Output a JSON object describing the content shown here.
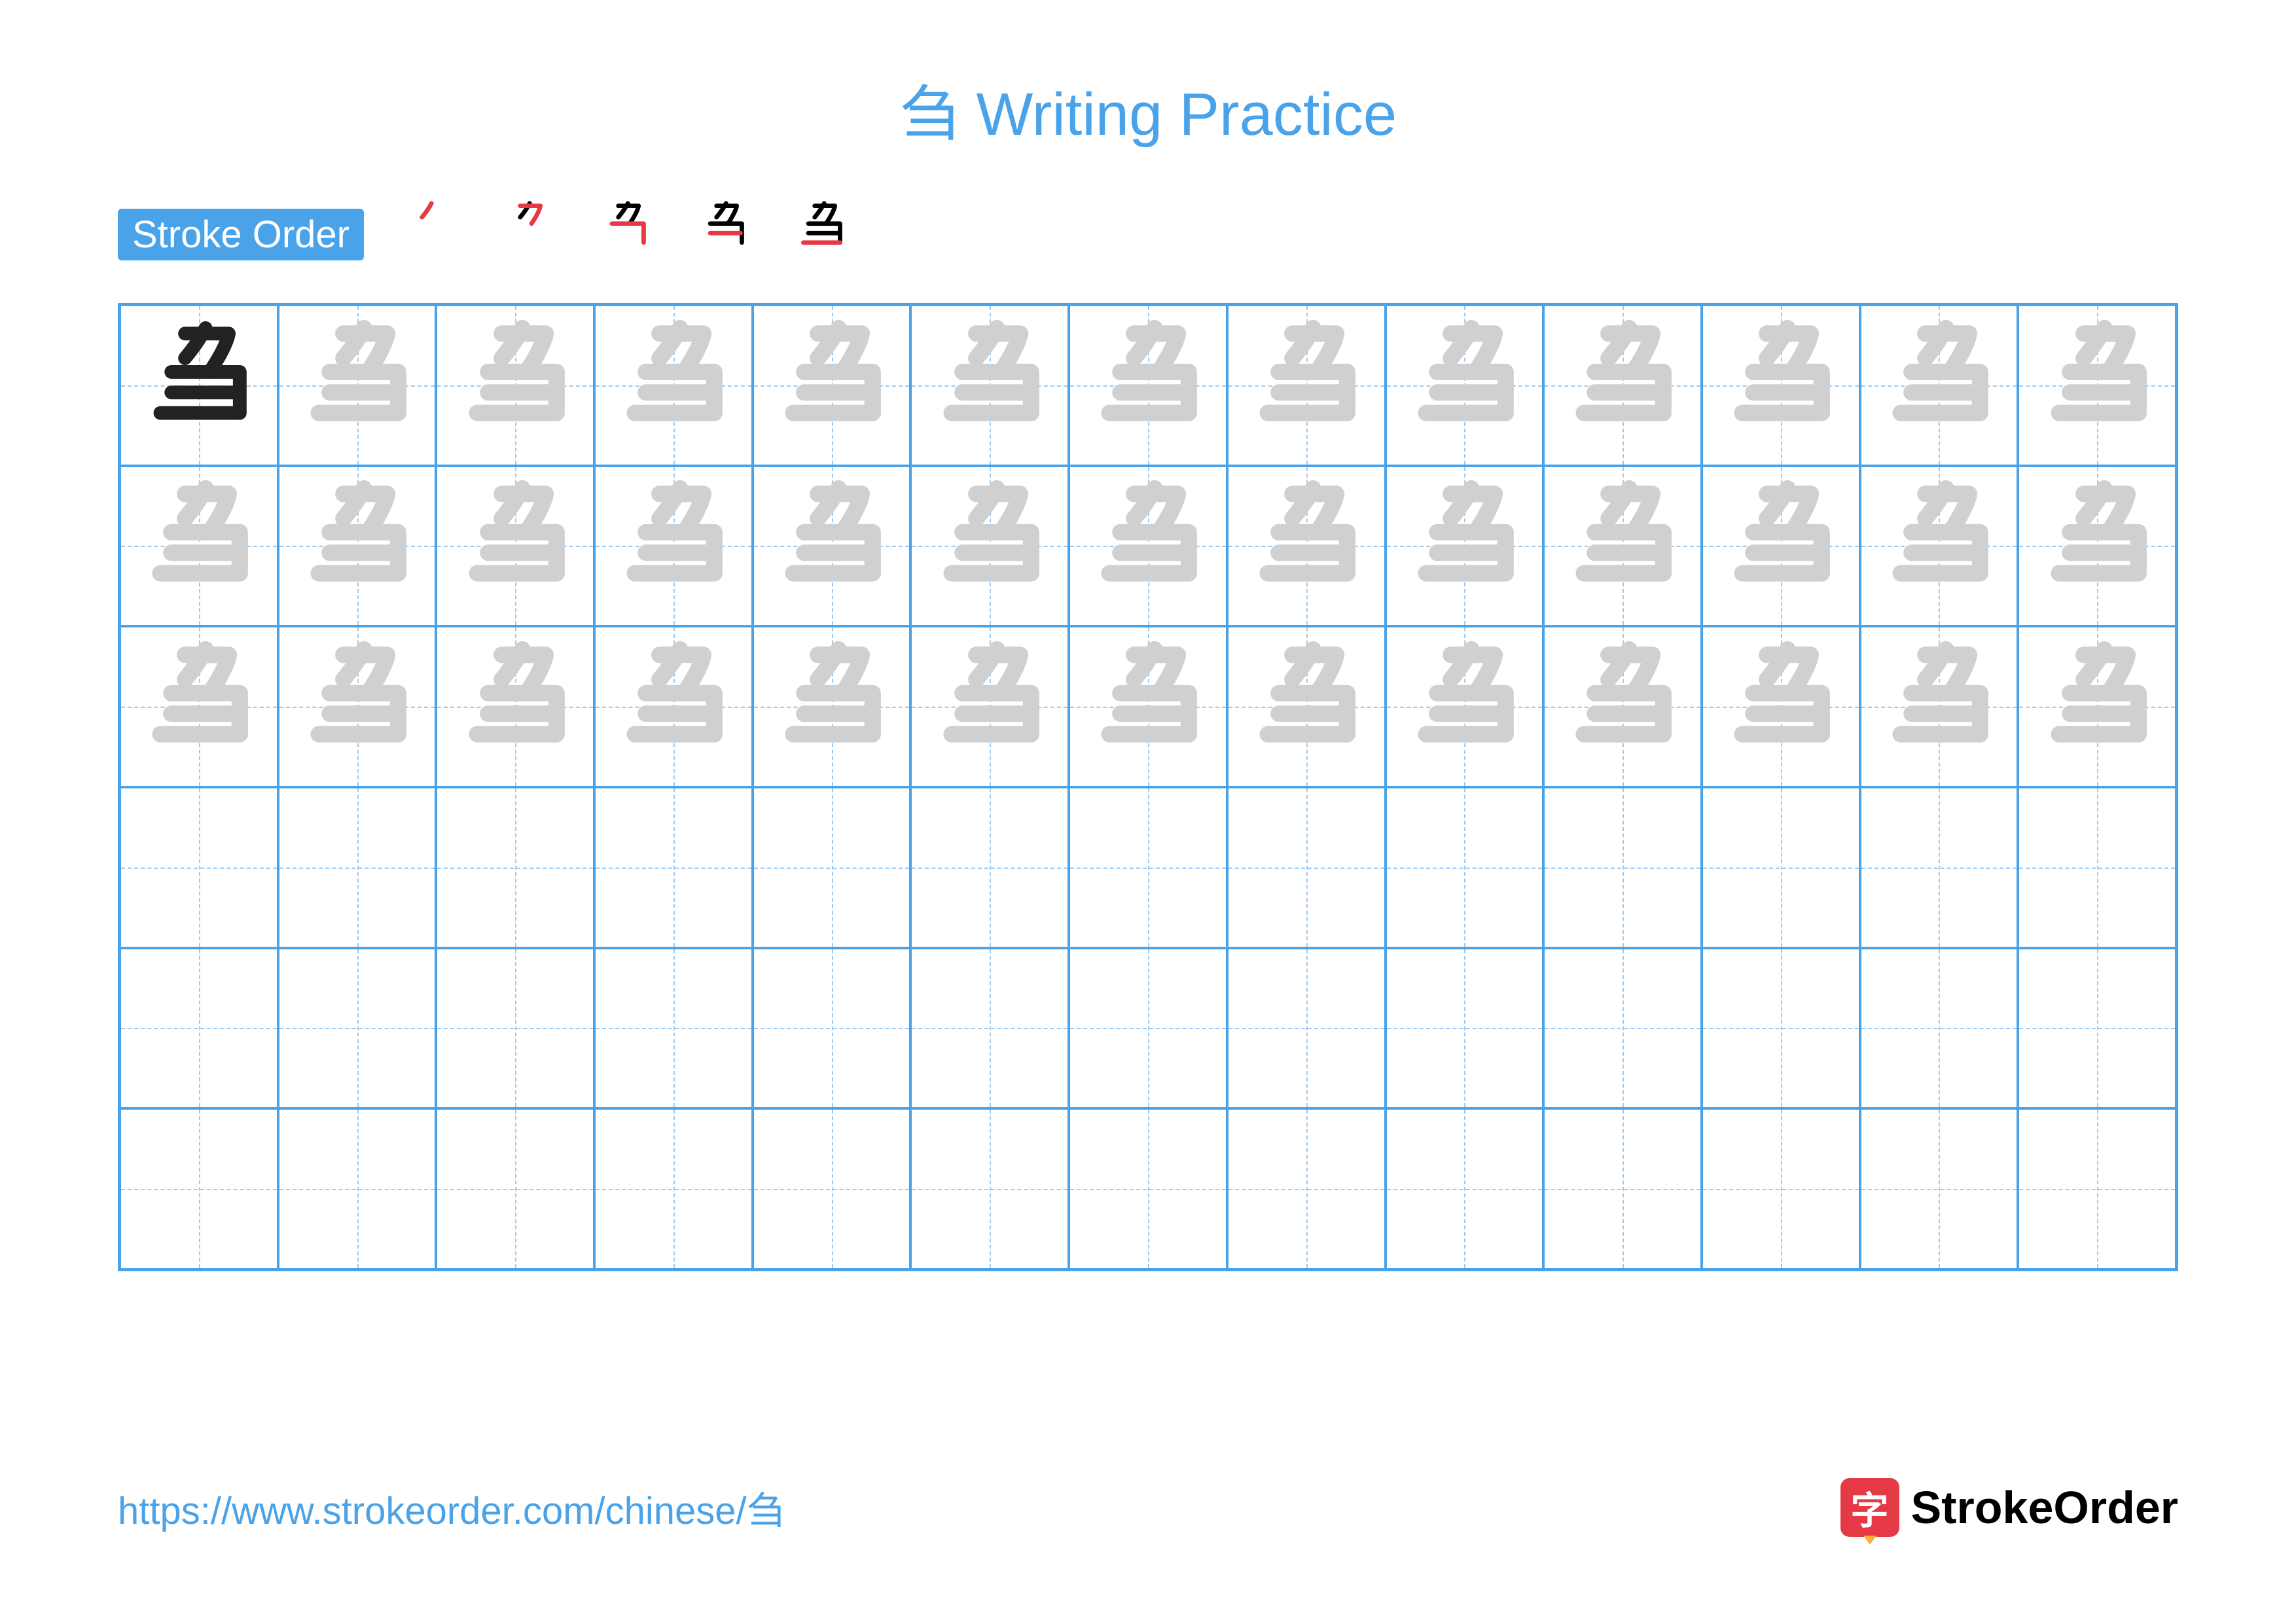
{
  "title": {
    "character": "刍",
    "suffix": " Writing Practice",
    "color": "#4aa3e8",
    "fontsize": 92
  },
  "stroke_order": {
    "label": "Stroke Order",
    "label_bg": "#4aa3e8",
    "label_color": "#ffffff",
    "count": 5,
    "character": "刍",
    "new_stroke_color": "#e63946",
    "done_stroke_color": "#000000"
  },
  "grid": {
    "cols": 13,
    "rows": 6,
    "trace_rows": 3,
    "blank_rows": 3,
    "border_color": "#4aa3e8",
    "guide_color": "#9dcbf2",
    "model_glyph_color": "#222222",
    "trace_glyph_color": "#d0d0d0",
    "character": "刍"
  },
  "footer": {
    "url": "https://www.strokeorder.com/chinese/刍",
    "url_color": "#4aa3e8",
    "logo_text": "StrokeOrder",
    "logo_icon_char": "字",
    "logo_icon_bg": "#e63946"
  }
}
